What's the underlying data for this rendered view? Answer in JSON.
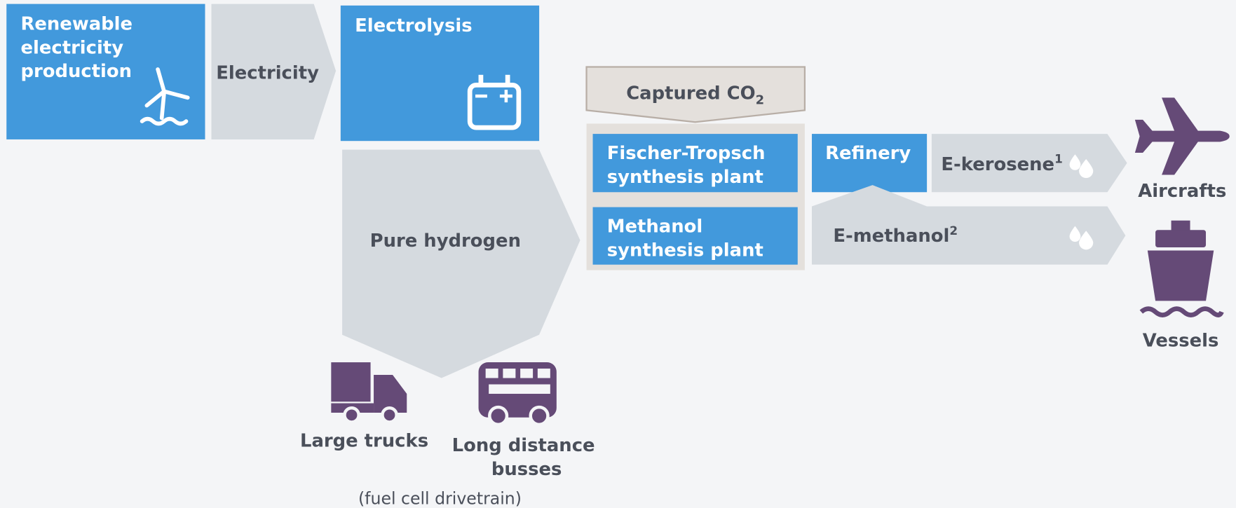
{
  "nodes": {
    "renewable": {
      "lines": [
        "Renewable",
        "electricity",
        "production"
      ]
    },
    "electricity": {
      "label": "Electricity"
    },
    "electrolysis": {
      "label": "Electrolysis"
    },
    "hydrogen": {
      "label": "Pure hydrogen"
    },
    "co2": {
      "label": "Captured CO",
      "subscript": "2"
    },
    "fischer_tropsch": {
      "lines": [
        "Fischer-Tropsch",
        "synthesis plant"
      ]
    },
    "methanol_plant": {
      "lines": [
        "Methanol",
        "synthesis plant"
      ]
    },
    "refinery": {
      "label": "Refinery"
    },
    "kerosene": {
      "label": "E-kerosene",
      "superscript": "1"
    },
    "methanol": {
      "label": "E-methanol",
      "superscript": "2"
    },
    "aircrafts": {
      "label": "Aircrafts"
    },
    "vessels": {
      "label": "Vessels"
    },
    "trucks": {
      "label": "Large trucks"
    },
    "busses": {
      "lines": [
        "Long distance",
        "busses"
      ]
    },
    "note": {
      "label": "(fuel cell drivetrain)"
    }
  }
}
